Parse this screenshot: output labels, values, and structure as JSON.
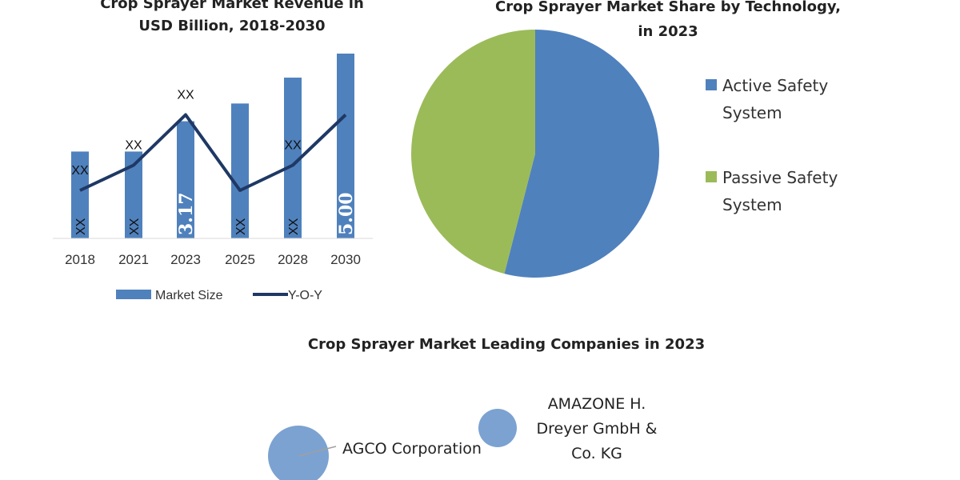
{
  "colors": {
    "bar": "#4f81bd",
    "line": "#1f3864",
    "active": "#4f81bd",
    "passive": "#9bbb59",
    "bubble": "#7ba2d1"
  },
  "chart_data": [
    {
      "type": "bar",
      "title_lines": [
        "Crop Sprayer Market Revenue in",
        "USD Billion, 2018-2030"
      ],
      "categories": [
        "2018",
        "2021",
        "2023",
        "2025",
        "2028",
        "2030"
      ],
      "series": [
        {
          "name": "Market Size",
          "values": [
            2.35,
            2.35,
            3.17,
            3.65,
            4.35,
            5.0
          ],
          "labels": [
            "XX",
            "XX",
            "3.17",
            "XX",
            "XX",
            "5.00"
          ]
        },
        {
          "name": "Y-O-Y",
          "type": "line",
          "values": [
            1.0,
            1.5,
            2.5,
            1.0,
            1.5,
            2.5
          ],
          "labels": [
            "XX",
            "XX",
            "XX",
            "",
            "XX",
            ""
          ]
        }
      ],
      "legend": "bottom",
      "grid": false
    },
    {
      "type": "pie",
      "title_lines": [
        "Crop Sprayer Market Share by Technology,",
        "in 2023"
      ],
      "slices": [
        {
          "name": "Active Safety System",
          "legend_lines": [
            "Active Safety",
            "System"
          ],
          "value": 54
        },
        {
          "name": "Passive Safety System",
          "legend_lines": [
            "Passive Safety",
            "System"
          ],
          "value": 46
        }
      ],
      "legend": "right"
    },
    {
      "type": "bubble",
      "title": "Crop Sprayer Market Leading Companies in 2023",
      "bubbles": [
        {
          "label_lines": [
            "AGCO Corporation"
          ],
          "size": 1.0
        },
        {
          "label_lines": [
            "AMAZONE H.",
            "Dreyer GmbH &",
            "Co. KG"
          ],
          "size": 0.4
        }
      ]
    }
  ]
}
